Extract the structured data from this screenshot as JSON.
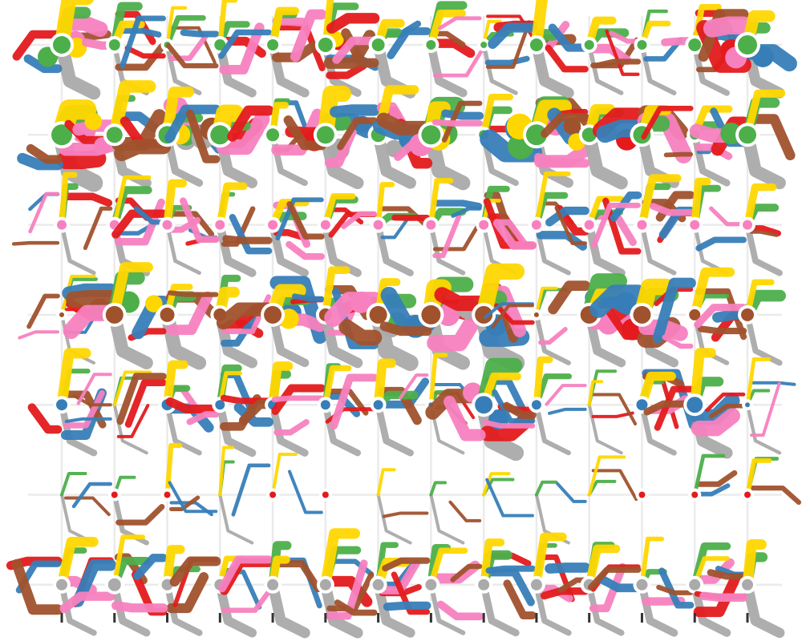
{
  "chart_data": {
    "type": "other",
    "description_free": true,
    "grid": true,
    "columns": 14,
    "rows": 7,
    "row_ids": [
      1,
      2,
      3,
      4,
      5,
      6,
      7
    ],
    "colors": {
      "gray": "#aaaaaa",
      "brown": "#a0522d",
      "blue": "#377eb8",
      "green": "#4daf4a",
      "yellow": "#ffd700",
      "pink": "#f781bf",
      "red": "#e41a1c"
    },
    "row_marker_color": [
      "#4daf4a",
      "#4daf4a",
      "#f781bf",
      "#a0522d",
      "#377eb8",
      "#e41a1c",
      "#aaaaaa"
    ],
    "series_order": [
      "gray",
      "red",
      "blue",
      "brown",
      "pink",
      "green",
      "yellow"
    ],
    "cells": [
      [
        {
          "s": 14,
          "m": 11
        },
        {
          "s": 9,
          "m": 7
        },
        {
          "s": 5,
          "m": 4
        },
        {
          "s": 9,
          "m": 7
        },
        {
          "s": 9,
          "m": 7
        },
        {
          "s": 11,
          "m": 9
        },
        {
          "s": 10,
          "m": 8
        },
        {
          "s": 8,
          "m": 6
        },
        {
          "s": 5,
          "m": 4
        },
        {
          "s": 10,
          "m": 8
        },
        {
          "s": 8,
          "m": 6
        },
        {
          "s": 7,
          "m": 6
        },
        {
          "s": 10,
          "m": 8
        },
        {
          "s": 15,
          "m": 12
        }
      ],
      [
        {
          "s": 18,
          "m": 13
        },
        {
          "s": 12,
          "m": 10
        },
        {
          "s": 14,
          "m": 11
        },
        {
          "s": 16,
          "m": 12
        },
        {
          "s": 10,
          "m": 8
        },
        {
          "s": 15,
          "m": 11
        },
        {
          "s": 12,
          "m": 9
        },
        {
          "s": 16,
          "m": 12
        },
        {
          "s": 7,
          "m": 6
        },
        {
          "s": 18,
          "m": 13
        },
        {
          "s": 12,
          "m": 9
        },
        {
          "s": 15,
          "m": 11
        },
        {
          "s": 8,
          "m": 6
        },
        {
          "s": 15,
          "m": 11
        }
      ],
      [
        {
          "s": 7,
          "m": 6
        },
        {
          "s": 7,
          "m": 6
        },
        {
          "s": 7,
          "m": 6
        },
        {
          "s": 7,
          "m": 6
        },
        {
          "s": 7,
          "m": 6
        },
        {
          "s": 7,
          "m": 6
        },
        {
          "s": 7,
          "m": 6
        },
        {
          "s": 7,
          "m": 6
        },
        {
          "s": 7,
          "m": 6
        },
        {
          "s": 7,
          "m": 6
        },
        {
          "s": 7,
          "m": 6
        },
        {
          "s": 7,
          "m": 6
        },
        {
          "s": 7,
          "m": 6
        },
        {
          "s": 7,
          "m": 6
        }
      ],
      [
        {
          "s": 4,
          "m": 3
        },
        {
          "s": 15,
          "m": 11
        },
        {
          "s": 12,
          "m": 9
        },
        {
          "s": 10,
          "m": 8
        },
        {
          "s": 14,
          "m": 11
        },
        {
          "s": 10,
          "m": 8
        },
        {
          "s": 15,
          "m": 11
        },
        {
          "s": 16,
          "m": 12
        },
        {
          "s": 15,
          "m": 11
        },
        {
          "s": 4,
          "m": 3
        },
        {
          "s": 15,
          "m": 11
        },
        {
          "s": 15,
          "m": 11
        },
        {
          "s": 9,
          "m": 7
        },
        {
          "s": 10,
          "m": 8
        }
      ],
      [
        {
          "s": 9,
          "m": 7
        },
        {
          "s": 0,
          "m": 0
        },
        {
          "s": 9,
          "m": 7
        },
        {
          "s": 8,
          "m": 6
        },
        {
          "s": 8,
          "m": 6
        },
        {
          "s": 8,
          "m": 6
        },
        {
          "s": 8,
          "m": 6
        },
        {
          "s": 4,
          "m": 3
        },
        {
          "s": 14,
          "m": 11
        },
        {
          "s": 8,
          "m": 6
        },
        {
          "s": 0,
          "m": 0
        },
        {
          "s": 9,
          "m": 7
        },
        {
          "s": 13,
          "m": 10
        },
        {
          "s": 4,
          "m": 3
        }
      ],
      [
        {
          "s": 0,
          "m": 0
        },
        {
          "s": 5,
          "m": 4
        },
        {
          "s": 5,
          "m": 4
        },
        {
          "s": 0,
          "m": 0
        },
        {
          "s": 5,
          "m": 4
        },
        {
          "s": 5,
          "m": 4
        },
        {
          "s": 0,
          "m": 0
        },
        {
          "s": 0,
          "m": 0
        },
        {
          "s": 0,
          "m": 0
        },
        {
          "s": 0,
          "m": 0
        },
        {
          "s": 0,
          "m": 0
        },
        {
          "s": 5,
          "m": 4
        },
        {
          "s": 5,
          "m": 4
        },
        {
          "s": 5,
          "m": 4
        }
      ],
      [
        {
          "s": 9,
          "m": 7
        },
        {
          "s": 10,
          "m": 8
        },
        {
          "s": 9,
          "m": 7
        },
        {
          "s": 9,
          "m": 7
        },
        {
          "s": 9,
          "m": 7
        },
        {
          "s": 9,
          "m": 7
        },
        {
          "s": 9,
          "m": 7
        },
        {
          "s": 9,
          "m": 7
        },
        {
          "s": 9,
          "m": 7
        },
        {
          "s": 9,
          "m": 7
        },
        {
          "s": 9,
          "m": 7
        },
        {
          "s": 9,
          "m": 7
        },
        {
          "s": 9,
          "m": 7
        },
        {
          "s": 9,
          "m": 7
        }
      ]
    ]
  }
}
